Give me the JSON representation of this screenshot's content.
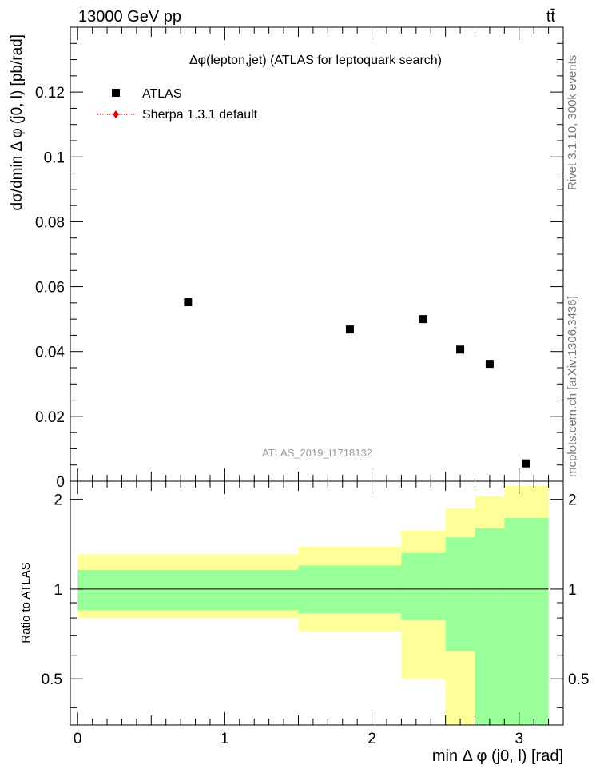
{
  "header": {
    "energy_label": "13000 GeV pp",
    "process_label": "tt̄",
    "plot_title": "Δφ(lepton,jet) (ATLAS for leptoquark search)",
    "watermark": "ATLAS_2019_I1718132"
  },
  "side_labels": {
    "rivet": "Rivet 3.1.10,  300k events",
    "mcplots": "mcplots.cern.ch [arXiv:1306.3436]"
  },
  "legend": {
    "atlas": "ATLAS",
    "sherpa": "Sherpa 1.3.1 default"
  },
  "colors": {
    "data_marker": "#000000",
    "sherpa_marker": "#e00000",
    "band_inner": "#99ff99",
    "band_outer": "#ffff99"
  },
  "chart_data": [
    {
      "type": "scatter",
      "ylabel": "dσ/dmin Δ φ (j0, l) [pb/rad]",
      "xlim": [
        -0.05,
        3.3
      ],
      "ylim": [
        0,
        0.14
      ],
      "yticks": [
        0,
        0.02,
        0.04,
        0.06,
        0.08,
        0.1,
        0.12
      ],
      "ytick_labels": [
        "0",
        "0.02",
        "0.04",
        "0.06",
        "0.08",
        "0.1",
        "0.12"
      ],
      "series": [
        {
          "name": "ATLAS",
          "x": [
            0.75,
            1.85,
            2.35,
            2.6,
            2.8,
            3.05
          ],
          "y": [
            0.0552,
            0.0468,
            0.05,
            0.0406,
            0.0362,
            0.0055
          ]
        }
      ]
    },
    {
      "type": "area",
      "ylabel": "Ratio to ATLAS",
      "xlabel": "min Δ φ (j0, l) [rad]",
      "xlim": [
        -0.05,
        3.3
      ],
      "ylim": [
        0.35,
        2.3
      ],
      "xticks": [
        0,
        1,
        2,
        3
      ],
      "xtick_labels": [
        "0",
        "1",
        "2",
        "3"
      ],
      "yticks": [
        0.5,
        1,
        2
      ],
      "ytick_labels": [
        "0.5",
        "1",
        "2"
      ],
      "reference_line": 1,
      "bins": [
        0,
        1.5,
        2.2,
        2.5,
        2.7,
        2.9,
        3.2
      ],
      "inner_band": {
        "low": [
          0.85,
          0.83,
          0.79,
          0.62,
          0.35,
          0.35
        ],
        "high": [
          1.16,
          1.2,
          1.32,
          1.49,
          1.6,
          1.73
        ]
      },
      "outer_band": {
        "low": [
          0.8,
          0.72,
          0.5,
          0.35,
          0.35,
          0.35
        ],
        "high": [
          1.31,
          1.39,
          1.57,
          1.86,
          2.05,
          2.22
        ]
      }
    }
  ]
}
